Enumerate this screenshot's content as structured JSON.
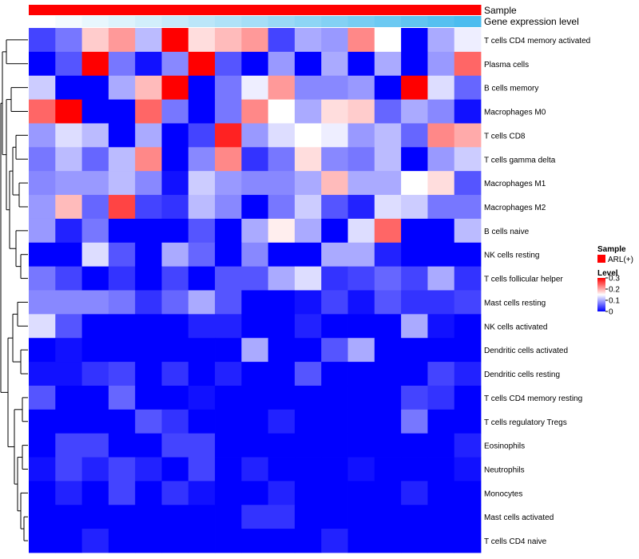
{
  "chart_data": {
    "type": "heatmap",
    "title": "",
    "annotation_tracks": [
      {
        "name": "Sample",
        "colors": [
          "#ff0000",
          "#ff0000",
          "#ff0000",
          "#ff0000",
          "#ff0000",
          "#ff0000",
          "#ff0000",
          "#ff0000",
          "#ff0000",
          "#ff0000",
          "#ff0000",
          "#ff0000",
          "#ff0000",
          "#ff0000",
          "#ff0000",
          "#ff0000",
          "#ff0000",
          "#ff0000",
          "#ff0000",
          "#ff0000",
          "#ff0000",
          "#ff0000"
        ]
      },
      {
        "name": "Gene expression level",
        "colors": [
          "#ffffff",
          "#f4fbfe",
          "#e8f7fd",
          "#ddf3fc",
          "#d2eefb",
          "#c6eafa",
          "#bbe6f9",
          "#b0e2f8",
          "#a5def7",
          "#99d9f6",
          "#8ed5f5",
          "#83d1f4",
          "#77cdf3",
          "#6cc9f2",
          "#61c4f1",
          "#56c0f0",
          "#4bbcef",
          "#4bbcef",
          "#4bbcef",
          "#4bbcef",
          "#4bbcef",
          "#4bbcef"
        ]
      }
    ],
    "rows": [
      "T cells CD4 memory activated",
      "Plasma cells",
      "B cells memory",
      "Macrophages M0",
      "T cells CD8",
      "T cells gamma delta",
      "Macrophages M1",
      "Macrophages M2",
      "B cells naive",
      "NK cells resting",
      "T cells follicular helper",
      "Mast cells resting",
      "NK cells activated",
      "Dendritic cells activated",
      "Dendritic cells resting",
      "T cells CD4 memory resting",
      "T cells regulatory  Tregs",
      "Eosinophils",
      "Neutrophils",
      "Monocytes",
      "Mast cells activated",
      "T cells CD4 naive"
    ],
    "values": [
      [
        0.04,
        0.07,
        0.18,
        0.21,
        0.11,
        0.3,
        0.17,
        0.19,
        0.21,
        0.04,
        0.1,
        0.09,
        0.22,
        0.15,
        0.0,
        0.1,
        0.14
      ],
      [
        0.0,
        0.05,
        0.3,
        0.07,
        0.01,
        0.08,
        0.3,
        0.05,
        0.0,
        0.09,
        0.0,
        0.1,
        0.0,
        0.1,
        0.0,
        0.09,
        0.24
      ],
      [
        0.12,
        0.0,
        0.0,
        0.1,
        0.19,
        0.3,
        0.0,
        0.07,
        0.14,
        0.21,
        0.08,
        0.08,
        0.09,
        0.0,
        0.3,
        0.13,
        0.06
      ],
      [
        0.24,
        0.3,
        0.0,
        0.0,
        0.24,
        0.07,
        0.0,
        0.07,
        0.22,
        0.15,
        0.1,
        0.17,
        0.18,
        0.06,
        0.1,
        0.08,
        0.01
      ],
      [
        0.09,
        0.13,
        0.11,
        0.0,
        0.1,
        0.0,
        0.04,
        0.28,
        0.09,
        0.13,
        0.15,
        0.14,
        0.09,
        0.11,
        0.06,
        0.22,
        0.2
      ],
      [
        0.07,
        0.11,
        0.06,
        0.11,
        0.22,
        0.0,
        0.08,
        0.22,
        0.03,
        0.07,
        0.17,
        0.08,
        0.07,
        0.11,
        0.0,
        0.09,
        0.12
      ],
      [
        0.08,
        0.09,
        0.09,
        0.11,
        0.08,
        0.01,
        0.12,
        0.09,
        0.08,
        0.08,
        0.1,
        0.19,
        0.1,
        0.1,
        0.15,
        0.17,
        0.05
      ],
      [
        0.09,
        0.19,
        0.06,
        0.26,
        0.04,
        0.03,
        0.11,
        0.08,
        0.0,
        0.07,
        0.12,
        0.05,
        0.02,
        0.13,
        0.12,
        0.07,
        0.07
      ],
      [
        0.09,
        0.02,
        0.07,
        0.0,
        0.0,
        0.0,
        0.05,
        0.0,
        0.1,
        0.16,
        0.1,
        0.0,
        0.13,
        0.24,
        0.0,
        0.0,
        0.11
      ],
      [
        0.0,
        0.0,
        0.13,
        0.05,
        0.0,
        0.1,
        0.06,
        0.0,
        0.08,
        0.0,
        0.0,
        0.1,
        0.1,
        0.02,
        0.0,
        0.0,
        0.0
      ],
      [
        0.07,
        0.04,
        0.0,
        0.03,
        0.0,
        0.04,
        0.0,
        0.05,
        0.05,
        0.1,
        0.13,
        0.03,
        0.04,
        0.06,
        0.04,
        0.1,
        0.03
      ],
      [
        0.08,
        0.08,
        0.08,
        0.07,
        0.03,
        0.06,
        0.1,
        0.05,
        0.0,
        0.0,
        0.01,
        0.04,
        0.01,
        0.05,
        0.03,
        0.03,
        0.04
      ],
      [
        0.13,
        0.05,
        0.0,
        0.0,
        0.0,
        0.0,
        0.02,
        0.02,
        0.0,
        0.0,
        0.02,
        0.0,
        0.0,
        0.0,
        0.1,
        0.01,
        0.0
      ],
      [
        0.0,
        0.01,
        0.0,
        0.0,
        0.0,
        0.0,
        0.0,
        0.0,
        0.1,
        0.0,
        0.0,
        0.05,
        0.1,
        0.0,
        0.0,
        0.0,
        0.0
      ],
      [
        0.01,
        0.01,
        0.03,
        0.04,
        0.0,
        0.03,
        0.0,
        0.02,
        0.0,
        0.0,
        0.05,
        0.0,
        0.0,
        0.0,
        0.0,
        0.04,
        0.02
      ],
      [
        0.05,
        0.0,
        0.0,
        0.06,
        0.0,
        0.0,
        0.01,
        0.0,
        0.0,
        0.0,
        0.0,
        0.0,
        0.0,
        0.0,
        0.04,
        0.03,
        0.0
      ],
      [
        0.0,
        0.0,
        0.0,
        0.0,
        0.05,
        0.03,
        0.0,
        0.0,
        0.0,
        0.02,
        0.0,
        0.0,
        0.0,
        0.0,
        0.07,
        0.0,
        0.0
      ],
      [
        0.0,
        0.04,
        0.04,
        0.0,
        0.0,
        0.04,
        0.04,
        0.0,
        0.0,
        0.0,
        0.0,
        0.0,
        0.0,
        0.0,
        0.0,
        0.0,
        0.02
      ],
      [
        0.01,
        0.04,
        0.02,
        0.04,
        0.02,
        0.0,
        0.04,
        0.0,
        0.02,
        0.0,
        0.0,
        0.0,
        0.01,
        0.0,
        0.0,
        0.0,
        0.01
      ],
      [
        0.0,
        0.02,
        0.0,
        0.04,
        0.0,
        0.03,
        0.01,
        0.0,
        0.0,
        0.02,
        0.0,
        0.0,
        0.0,
        0.0,
        0.02,
        0.0,
        0.0
      ],
      [
        0.0,
        0.0,
        0.0,
        0.0,
        0.0,
        0.0,
        0.0,
        0.0,
        0.03,
        0.03,
        0.0,
        0.0,
        0.0,
        0.0,
        0.0,
        0.0,
        0.0
      ],
      [
        0.0,
        0.0,
        0.02,
        0.0,
        0.0,
        0.0,
        0.0,
        0.0,
        0.0,
        0.0,
        0.0,
        0.02,
        0.0,
        0.0,
        0.0,
        0.0,
        0.0
      ]
    ],
    "color_scale": {
      "min": 0,
      "mid": 0.15,
      "max": 0.3,
      "low": "#0000ff",
      "midColor": "#ffffff",
      "high": "#ff0000"
    },
    "legend": {
      "sample_title": "Sample",
      "sample_entries": [
        {
          "label": "ARL(+)",
          "color": "#ff0000"
        }
      ],
      "level_title": "Level",
      "level_ticks": [
        "0.3",
        "0.2",
        "0.1",
        "0"
      ],
      "level_tick_values": [
        0.3,
        0.2,
        0.1,
        0
      ],
      "placement": "right"
    },
    "dendrogram": "rows"
  }
}
